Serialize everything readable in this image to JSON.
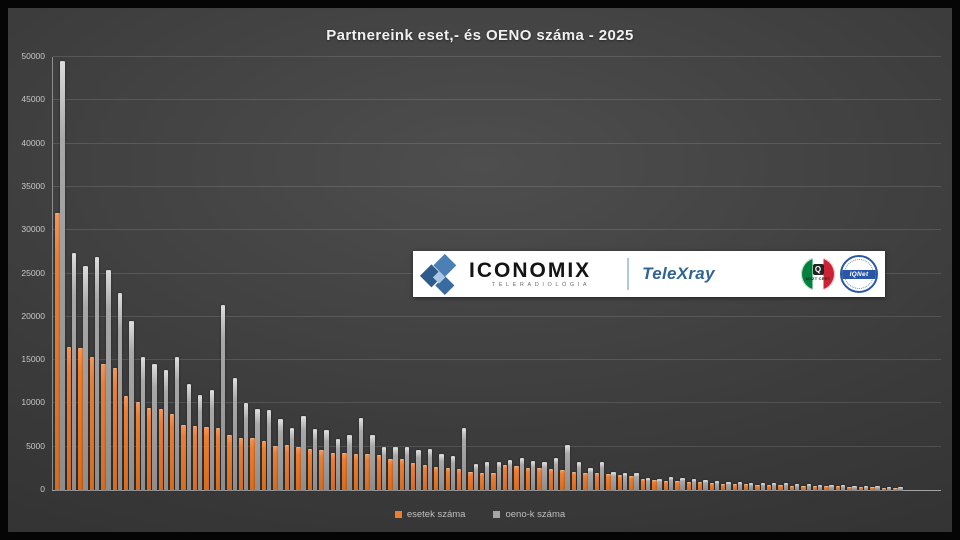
{
  "chart_data": {
    "type": "bar",
    "title": "Partnereink eset,- és OENO száma - 2025",
    "xlabel": "",
    "ylabel": "",
    "ylim": [
      0,
      50000
    ],
    "y_ticks": [
      0,
      5000,
      10000,
      15000,
      20000,
      25000,
      30000,
      35000,
      40000,
      45000,
      50000
    ],
    "grid": true,
    "legend_position": "bottom",
    "x_tick_labels_visible": false,
    "series": [
      {
        "name": "esetek száma",
        "color": "#ED7D31",
        "values": [
          31900,
          16400,
          16300,
          15200,
          14400,
          14000,
          10700,
          10100,
          9400,
          9200,
          8700,
          7400,
          7300,
          7200,
          7000,
          6200,
          5900,
          5900,
          5500,
          5000,
          5100,
          4900,
          4600,
          4500,
          4200,
          4200,
          4100,
          4100,
          3900,
          3500,
          3500,
          3000,
          2800,
          2500,
          2400,
          2300,
          2000,
          1900,
          1850,
          2750,
          2650,
          2450,
          2400,
          2300,
          2200,
          2000,
          1800,
          1800,
          1700,
          1600,
          1500,
          1100,
          1050,
          950,
          950,
          850,
          800,
          750,
          600,
          550,
          550,
          500,
          500,
          450,
          400,
          400,
          350,
          300,
          300,
          250,
          220,
          180,
          150,
          100
        ]
      },
      {
        "name": "oeno-k száma",
        "color": "#A6A6A6",
        "values": [
          49400,
          27200,
          25700,
          26800,
          25300,
          22600,
          19400,
          15200,
          14400,
          13800,
          15300,
          12100,
          10800,
          11400,
          21200,
          12800,
          9900,
          9200,
          9100,
          8100,
          7100,
          8400,
          6900,
          6800,
          5800,
          6200,
          8200,
          6200,
          4900,
          4900,
          4870,
          4500,
          4600,
          4100,
          3800,
          7100,
          2900,
          3150,
          3150,
          3350,
          3550,
          3230,
          3160,
          3620,
          5100,
          3080,
          2470,
          3080,
          2000,
          1900,
          1800,
          1250,
          1200,
          1350,
          1270,
          1120,
          1040,
          950,
          850,
          800,
          750,
          700,
          650,
          650,
          600,
          550,
          500,
          450,
          420,
          380,
          350,
          300,
          250,
          200
        ]
      }
    ]
  },
  "legend": {
    "esetek_label": "esetek száma",
    "oeno_label": "oeno-k száma"
  },
  "logo_overlay": {
    "brand": "ICONOMIX",
    "brand_sub": "TELERADIOLÓGIA",
    "product": "TeleXray",
    "mszt_badge_label": "MSZT CERT",
    "mszt_badge_glyph": "Q",
    "iqnet_badge_label": "IQNet"
  },
  "colors": {
    "esetek_bar": "#ED7D31",
    "oeno_bar": "#A6A6A6",
    "panel_background": "#3c3c3c",
    "frame_background": "#050505",
    "title_text": "#f0f0f0",
    "axis_text": "#c7c7c7",
    "product_text": "#31648f"
  }
}
